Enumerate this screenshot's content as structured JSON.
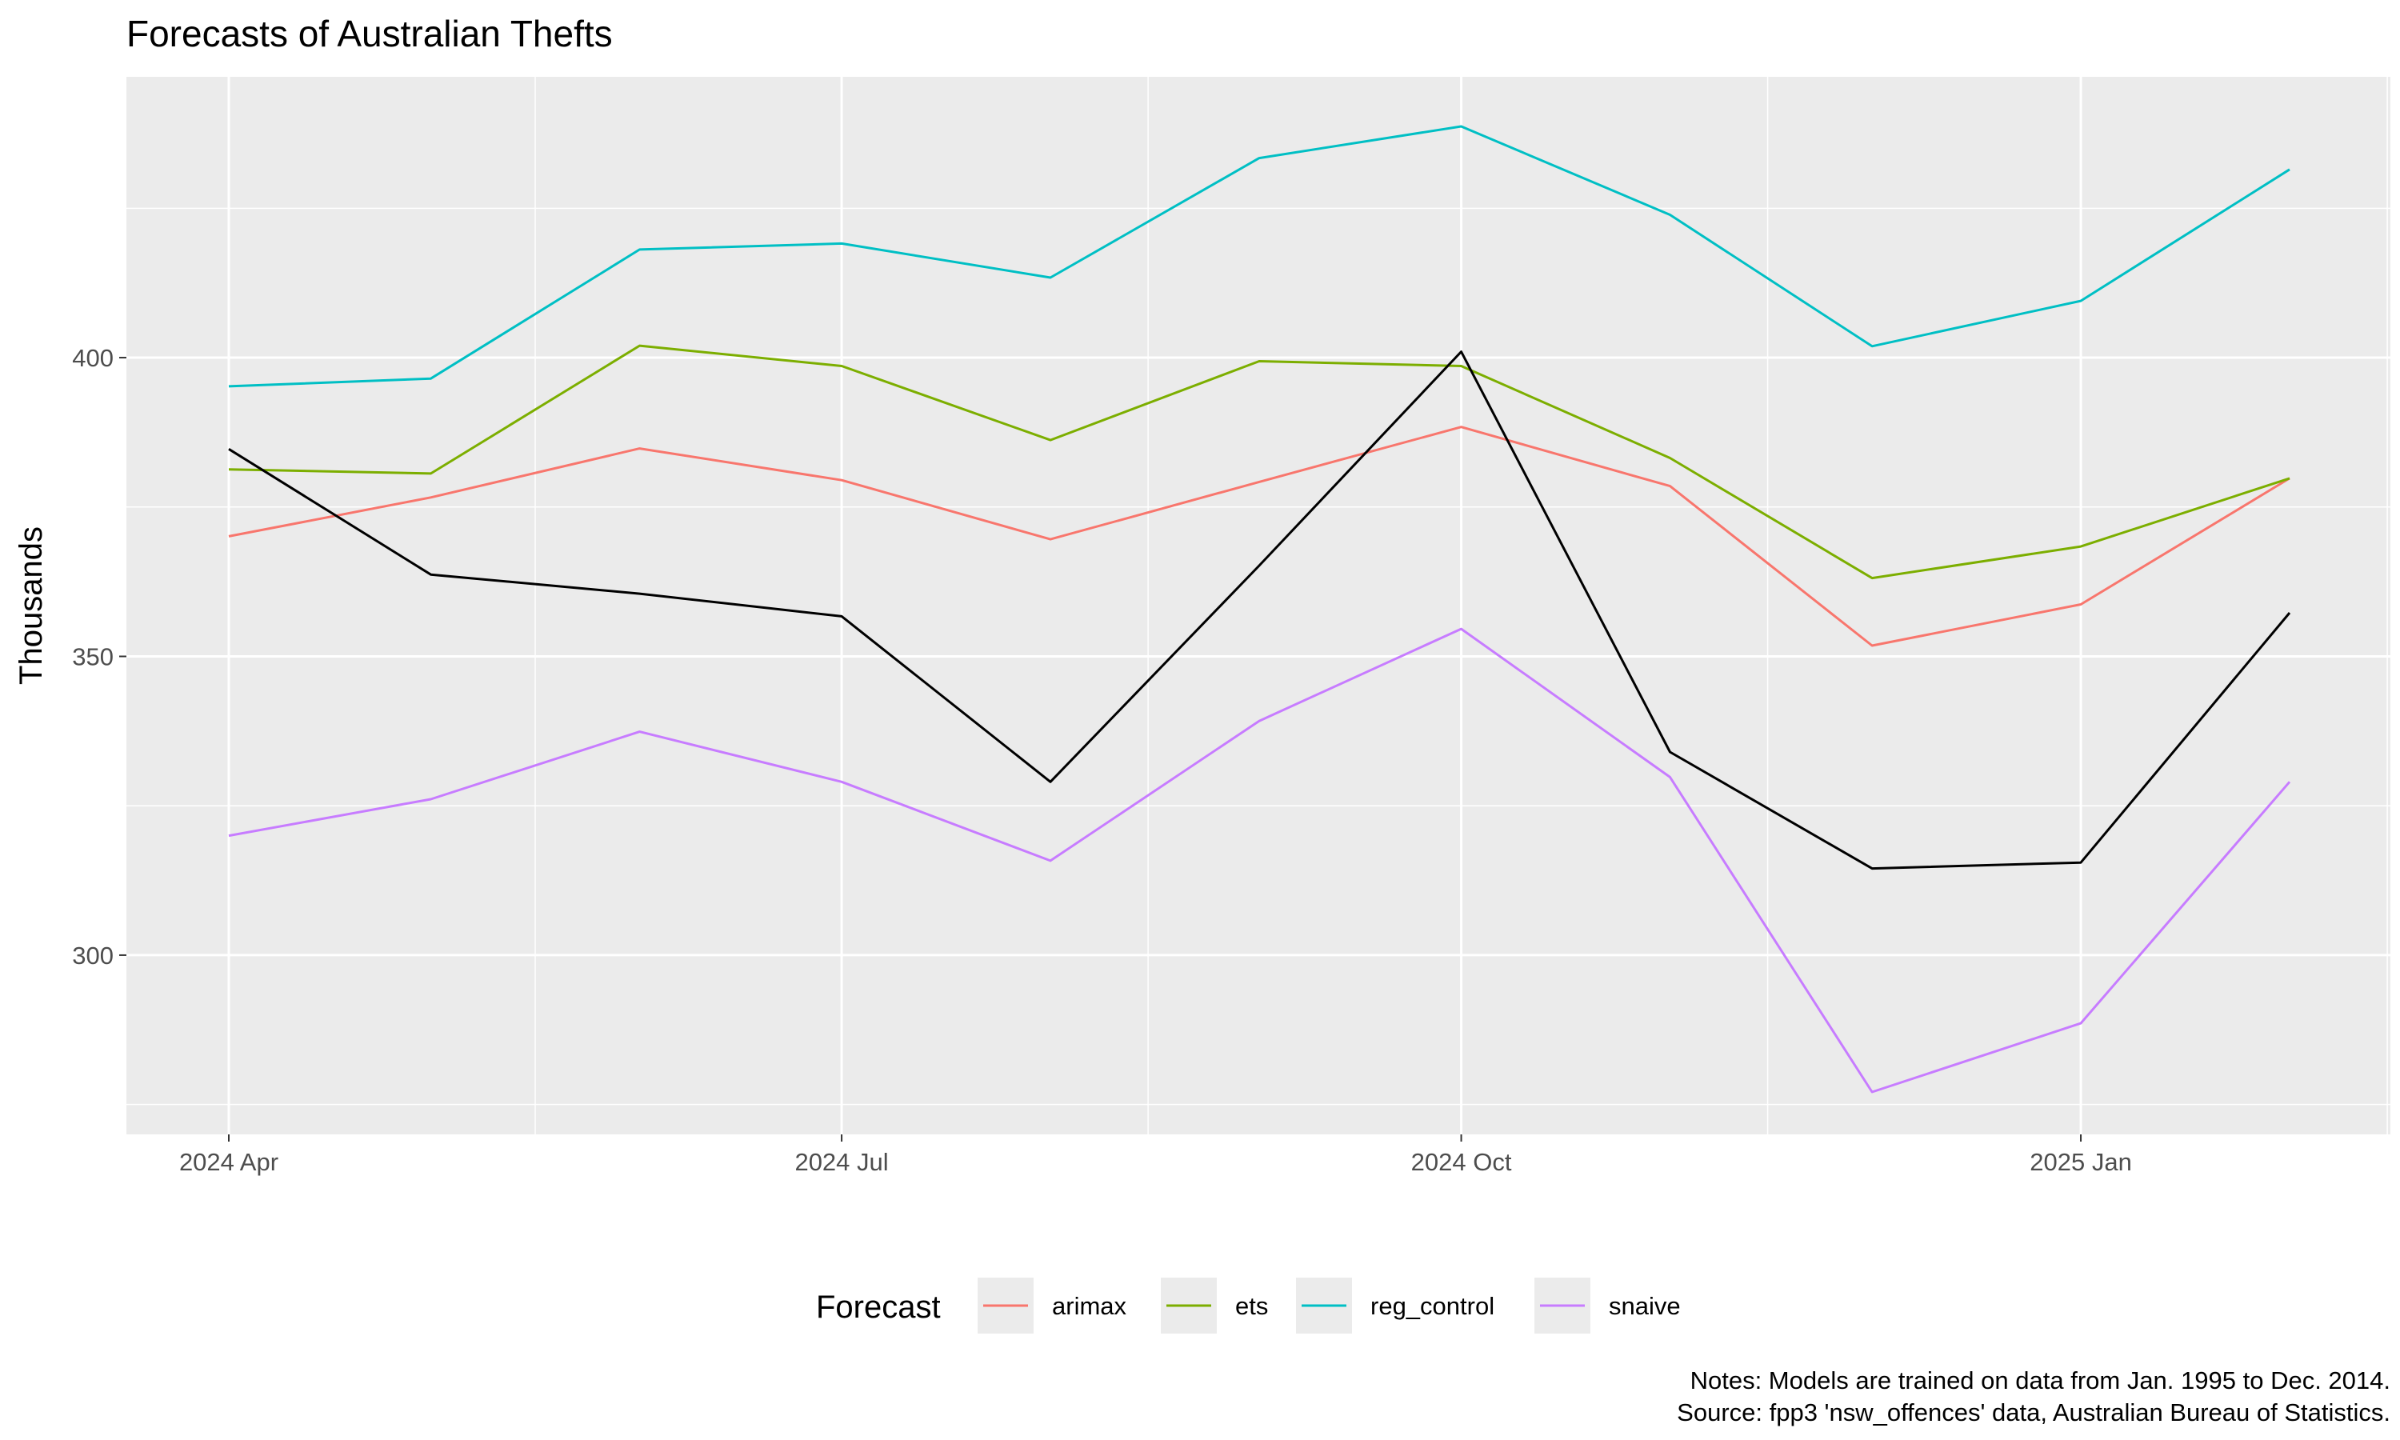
{
  "chart_data": {
    "type": "line",
    "title": "Forecasts of Australian Thefts",
    "xlabel": "",
    "ylabel": "Thousands",
    "x": [
      "2024-04",
      "2024-05",
      "2024-06",
      "2024-07",
      "2024-08",
      "2024-09",
      "2024-10",
      "2024-11",
      "2024-12",
      "2025-01",
      "2025-02"
    ],
    "x_ticks": [
      {
        "value": "2024-04",
        "label": "2024 Apr"
      },
      {
        "value": "2024-07",
        "label": "2024 Jul"
      },
      {
        "value": "2024-10",
        "label": "2024 Oct"
      },
      {
        "value": "2025-01",
        "label": "2025 Jan"
      }
    ],
    "ylim": [
      270,
      447
    ],
    "y_ticks": [
      300,
      350,
      400
    ],
    "grid": true,
    "legend": {
      "title": "Forecast",
      "position": "bottom"
    },
    "actual": {
      "color": "#000000",
      "values": [
        384.7,
        363.7,
        360.5,
        356.7,
        329.0,
        365.2,
        401.0,
        334.0,
        314.5,
        315.5,
        357.3
      ]
    },
    "series": [
      {
        "name": "arimax",
        "color": "#F8766D",
        "values": [
          370.1,
          376.6,
          384.8,
          379.5,
          369.6,
          379.2,
          388.4,
          378.5,
          351.8,
          358.7,
          379.8
        ]
      },
      {
        "name": "ets",
        "color": "#7CAE00",
        "values": [
          381.3,
          380.6,
          402.0,
          398.6,
          386.2,
          399.4,
          398.6,
          383.2,
          363.1,
          368.4,
          379.8
        ]
      },
      {
        "name": "reg_control",
        "color": "#00BFC4",
        "values": [
          395.2,
          396.5,
          418.1,
          419.1,
          413.4,
          433.4,
          438.7,
          423.9,
          401.9,
          409.5,
          431.5
        ]
      },
      {
        "name": "snaive",
        "color": "#C77CFF",
        "values": [
          320.0,
          326.1,
          337.4,
          329.0,
          315.8,
          339.2,
          354.6,
          329.8,
          277.1,
          288.6,
          329.0
        ]
      }
    ],
    "notes": [
      "Notes: Models are trained on data from Jan. 1995 to Dec. 2014.",
      "Source: fpp3 'nsw_offences' data, Australian Bureau of Statistics."
    ]
  }
}
